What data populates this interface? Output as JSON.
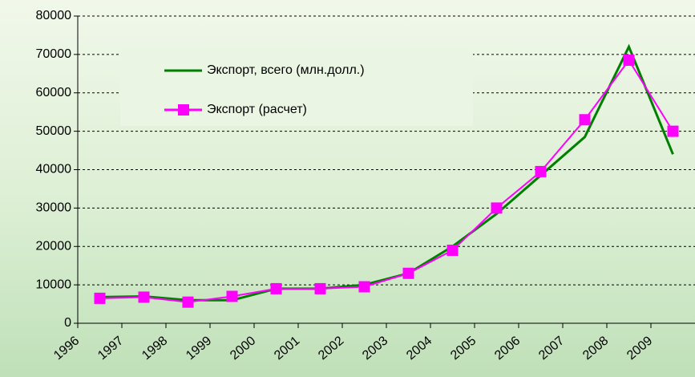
{
  "chart_data": {
    "type": "line",
    "categories": [
      "1996",
      "1997",
      "1998",
      "1999",
      "2000",
      "2001",
      "2002",
      "2003",
      "2004",
      "2005",
      "2006",
      "2007",
      "2008",
      "2009"
    ],
    "series": [
      {
        "name": "Экспорт, всего (млн.долл.)",
        "color": "#008000",
        "marker": false,
        "values": [
          6800,
          7000,
          6000,
          6000,
          9000,
          9000,
          10000,
          13000,
          20000,
          28500,
          38500,
          48500,
          72000,
          44000
        ]
      },
      {
        "name": "Экспорт (расчет)",
        "color": "#ff00ff",
        "marker": true,
        "values": [
          6500,
          6800,
          5500,
          7000,
          9000,
          9000,
          9500,
          13000,
          19000,
          30000,
          39500,
          53000,
          68500,
          50000
        ]
      }
    ],
    "ylim": [
      0,
      80000
    ],
    "yticks": [
      0,
      10000,
      20000,
      30000,
      40000,
      50000,
      60000,
      70000,
      80000
    ],
    "grid": true,
    "legend": "upper-left"
  }
}
